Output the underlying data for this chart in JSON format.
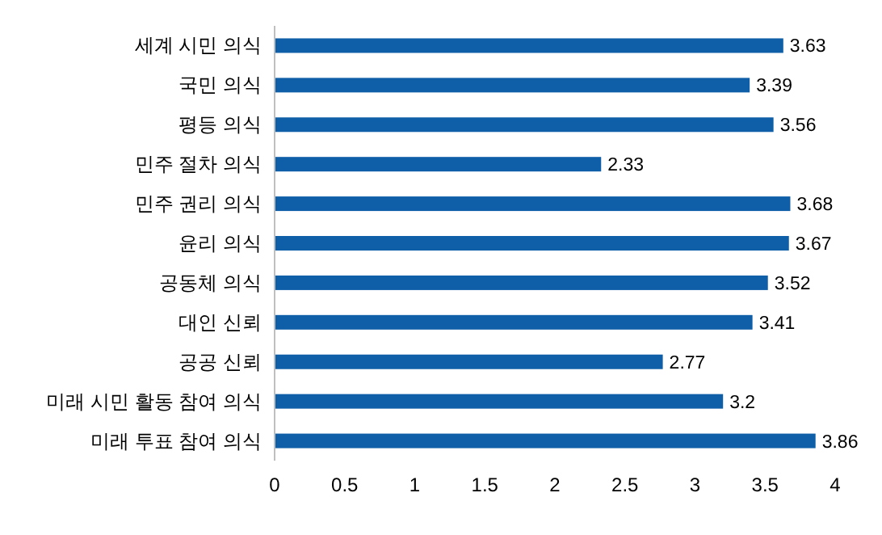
{
  "chart_data": {
    "type": "bar",
    "orientation": "horizontal",
    "categories": [
      "세계 시민 의식",
      "국민 의식",
      "평등 의식",
      "민주 절차 의식",
      "민주 권리 의식",
      "윤리 의식",
      "공동체 의식",
      "대인 신뢰",
      "공공 신뢰",
      "미래 시민 활동 참여 의식",
      "미래 투표 참여 의식"
    ],
    "values": [
      3.63,
      3.39,
      3.56,
      2.33,
      3.68,
      3.67,
      3.52,
      3.41,
      2.77,
      3.2,
      3.86
    ],
    "color": "#0f5fa8",
    "xlim": [
      0,
      4
    ],
    "xticks": [
      0,
      0.5,
      1,
      1.5,
      2,
      2.5,
      3,
      3.5,
      4
    ],
    "data_labels": true
  }
}
